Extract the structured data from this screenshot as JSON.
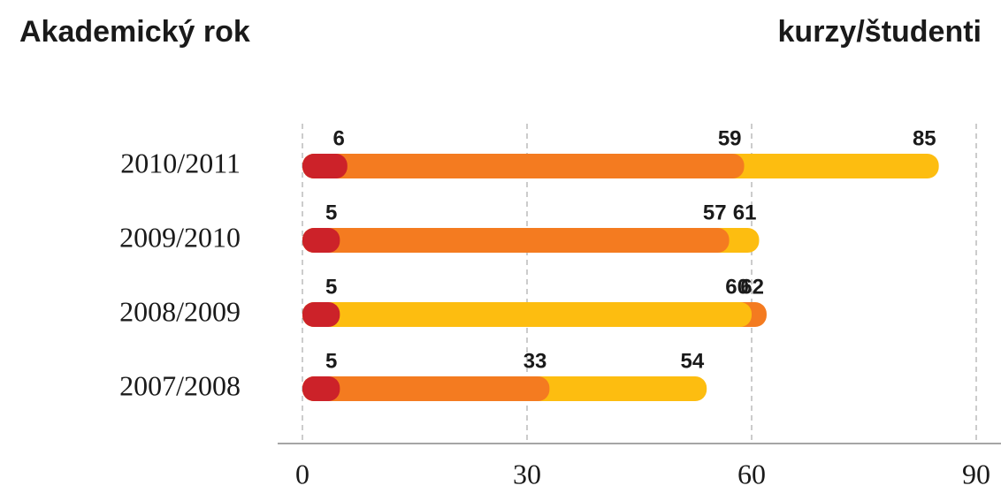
{
  "chart_data": {
    "type": "bar",
    "orientation": "horizontal",
    "title": "Akademický rok",
    "subtitle": "kurzy/študenti",
    "categories": [
      "2010/2011",
      "2009/2010",
      "2008/2009",
      "2007/2008"
    ],
    "series": [
      {
        "color": "#cc2229",
        "values": [
          6,
          5,
          5,
          5
        ]
      },
      {
        "color": "#f47b20",
        "values": [
          59,
          57,
          62,
          33
        ]
      },
      {
        "color": "#fdbd10",
        "values": [
          85,
          61,
          60,
          54
        ]
      }
    ],
    "xlim": [
      0,
      90
    ],
    "xticks": [
      0,
      30,
      60,
      90
    ],
    "grid": true
  }
}
